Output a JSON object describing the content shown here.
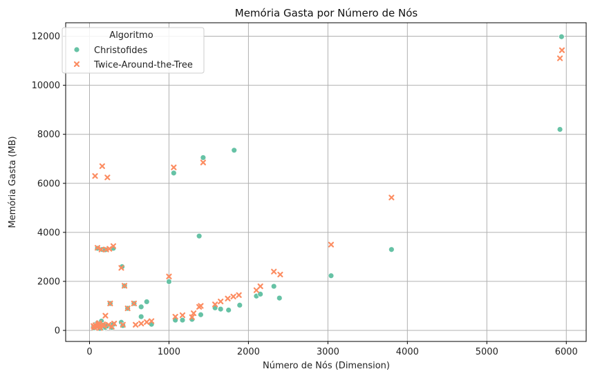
{
  "chart_data": {
    "type": "scatter",
    "title": "Memória Gasta por Número de Nós",
    "xlabel": "Número de Nós (Dimension)",
    "ylabel": "Memória Gasta (MB)",
    "xlim": [
      -300,
      6250
    ],
    "ylim": [
      -450,
      12550
    ],
    "xticks": [
      0,
      1000,
      2000,
      3000,
      4000,
      5000,
      6000
    ],
    "yticks": [
      0,
      2000,
      4000,
      6000,
      8000,
      10000,
      12000
    ],
    "grid": true,
    "legend": {
      "title": "Algoritmo",
      "placement": "top-left"
    },
    "series": [
      {
        "name": "Christofides",
        "marker": "circle",
        "color": "#66c2a5",
        "points": [
          [
            50,
            150
          ],
          [
            60,
            100
          ],
          [
            70,
            200
          ],
          [
            75,
            250
          ],
          [
            80,
            180
          ],
          [
            90,
            120
          ],
          [
            100,
            300
          ],
          [
            100,
            3350
          ],
          [
            110,
            230
          ],
          [
            130,
            80
          ],
          [
            150,
            380
          ],
          [
            150,
            200
          ],
          [
            160,
            3300
          ],
          [
            170,
            100
          ],
          [
            180,
            220
          ],
          [
            200,
            120
          ],
          [
            200,
            3290
          ],
          [
            225,
            180
          ],
          [
            260,
            1100
          ],
          [
            280,
            120
          ],
          [
            300,
            250
          ],
          [
            300,
            3350
          ],
          [
            400,
            330
          ],
          [
            410,
            2600
          ],
          [
            420,
            200
          ],
          [
            440,
            1820
          ],
          [
            480,
            900
          ],
          [
            560,
            1100
          ],
          [
            650,
            560
          ],
          [
            650,
            960
          ],
          [
            720,
            1170
          ],
          [
            780,
            250
          ],
          [
            1000,
            1990
          ],
          [
            1060,
            6420
          ],
          [
            1080,
            420
          ],
          [
            1170,
            420
          ],
          [
            1290,
            450
          ],
          [
            1380,
            3850
          ],
          [
            1400,
            640
          ],
          [
            1430,
            7050
          ],
          [
            1580,
            920
          ],
          [
            1650,
            870
          ],
          [
            1750,
            830
          ],
          [
            1820,
            7350
          ],
          [
            1890,
            1030
          ],
          [
            2100,
            1400
          ],
          [
            2150,
            1480
          ],
          [
            2320,
            1800
          ],
          [
            2390,
            1320
          ],
          [
            3040,
            2230
          ],
          [
            3800,
            3300
          ],
          [
            5920,
            8200
          ],
          [
            5940,
            11980
          ]
        ]
      },
      {
        "name": "Twice-Around-the-Tree",
        "marker": "x",
        "color": "#fc8d62",
        "points": [
          [
            50,
            180
          ],
          [
            60,
            120
          ],
          [
            70,
            6300
          ],
          [
            75,
            210
          ],
          [
            90,
            140
          ],
          [
            100,
            3370
          ],
          [
            110,
            250
          ],
          [
            120,
            300
          ],
          [
            130,
            100
          ],
          [
            150,
            3300
          ],
          [
            160,
            6700
          ],
          [
            170,
            250
          ],
          [
            180,
            180
          ],
          [
            200,
            600
          ],
          [
            210,
            3300
          ],
          [
            225,
            6240
          ],
          [
            240,
            230
          ],
          [
            250,
            3330
          ],
          [
            260,
            1100
          ],
          [
            280,
            150
          ],
          [
            300,
            3440
          ],
          [
            310,
            280
          ],
          [
            400,
            2550
          ],
          [
            420,
            230
          ],
          [
            440,
            1820
          ],
          [
            480,
            900
          ],
          [
            560,
            1100
          ],
          [
            580,
            230
          ],
          [
            650,
            280
          ],
          [
            720,
            340
          ],
          [
            780,
            380
          ],
          [
            1000,
            2200
          ],
          [
            1060,
            6650
          ],
          [
            1080,
            560
          ],
          [
            1170,
            620
          ],
          [
            1290,
            540
          ],
          [
            1310,
            700
          ],
          [
            1380,
            960
          ],
          [
            1400,
            1000
          ],
          [
            1430,
            6850
          ],
          [
            1580,
            1060
          ],
          [
            1650,
            1180
          ],
          [
            1740,
            1300
          ],
          [
            1810,
            1380
          ],
          [
            1880,
            1440
          ],
          [
            2100,
            1640
          ],
          [
            2150,
            1800
          ],
          [
            2320,
            2400
          ],
          [
            2400,
            2280
          ],
          [
            3040,
            3500
          ],
          [
            3800,
            5420
          ],
          [
            5920,
            11100
          ],
          [
            5945,
            11430
          ]
        ]
      }
    ]
  }
}
